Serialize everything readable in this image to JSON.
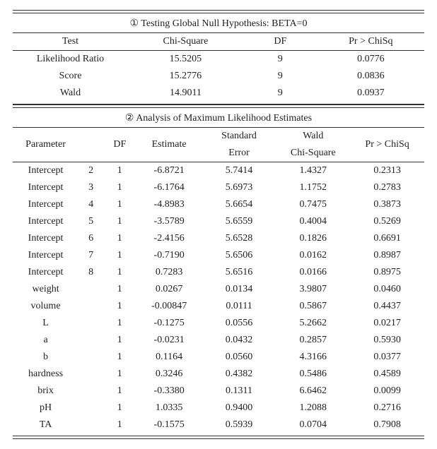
{
  "section1": {
    "title": "① Testing Global Null Hypothesis: BETA=0",
    "columns": [
      "Test",
      "Chi-Square",
      "DF",
      "Pr > ChiSq"
    ],
    "rows": [
      [
        "Likelihood Ratio",
        "15.5205",
        "9",
        "0.0776"
      ],
      [
        "Score",
        "15.2776",
        "9",
        "0.0836"
      ],
      [
        "Wald",
        "14.9011",
        "9",
        "0.0937"
      ]
    ]
  },
  "section2": {
    "title": "②  Analysis of Maximum Likelihood Estimates",
    "columns": [
      "Parameter",
      "",
      "DF",
      "Estimate",
      "Standard Error",
      "Wald Chi-Square",
      "Pr > ChiSq"
    ],
    "col_parts": {
      "std_err_top": "Standard",
      "std_err_bot": "Error",
      "wald_top": "Wald",
      "wald_bot": "Chi-Square"
    },
    "rows": [
      [
        "Intercept",
        "2",
        "1",
        "-6.8721",
        "5.7414",
        "1.4327",
        "0.2313"
      ],
      [
        "Intercept",
        "3",
        "1",
        "-6.1764",
        "5.6973",
        "1.1752",
        "0.2783"
      ],
      [
        "Intercept",
        "4",
        "1",
        "-4.8983",
        "5.6654",
        "0.7475",
        "0.3873"
      ],
      [
        "Intercept",
        "5",
        "1",
        "-3.5789",
        "5.6559",
        "0.4004",
        "0.5269"
      ],
      [
        "Intercept",
        "6",
        "1",
        "-2.4156",
        "5.6528",
        "0.1826",
        "0.6691"
      ],
      [
        "Intercept",
        "7",
        "1",
        "-0.7190",
        "5.6506",
        "0.0162",
        "0.8987"
      ],
      [
        "Intercept",
        "8",
        "1",
        "0.7283",
        "5.6516",
        "0.0166",
        "0.8975"
      ],
      [
        "weight",
        "",
        "1",
        "0.0267",
        "0.0134",
        "3.9807",
        "0.0460"
      ],
      [
        "volume",
        "",
        "1",
        "-0.00847",
        "0.0111",
        "0.5867",
        "0.4437"
      ],
      [
        "L",
        "",
        "1",
        "-0.1275",
        "0.0556",
        "5.2662",
        "0.0217"
      ],
      [
        "a",
        "",
        "1",
        "-0.0231",
        "0.0432",
        "0.2857",
        "0.5930"
      ],
      [
        "b",
        "",
        "1",
        "0.1164",
        "0.0560",
        "4.3166",
        "0.0377"
      ],
      [
        "hardness",
        "",
        "1",
        "0.3246",
        "0.4382",
        "0.5486",
        "0.4589"
      ],
      [
        "brix",
        "",
        "1",
        "-0.3380",
        "0.1311",
        "6.6462",
        "0.0099"
      ],
      [
        "pH",
        "",
        "1",
        "1.0335",
        "0.9400",
        "1.2088",
        "0.2716"
      ],
      [
        "TA",
        "",
        "1",
        "-0.1575",
        "0.5939",
        "0.0704",
        "0.7908"
      ]
    ]
  },
  "style": {
    "font_family": "Times New Roman, serif",
    "font_size_pt": 11,
    "text_color": "#222222",
    "rule_color": "#333333",
    "background": "#ffffff",
    "col_widths_s1": [
      "28%",
      "28%",
      "18%",
      "26%"
    ],
    "col_widths_s2": [
      "16%",
      "6%",
      "8%",
      "16%",
      "18%",
      "18%",
      "18%"
    ]
  }
}
